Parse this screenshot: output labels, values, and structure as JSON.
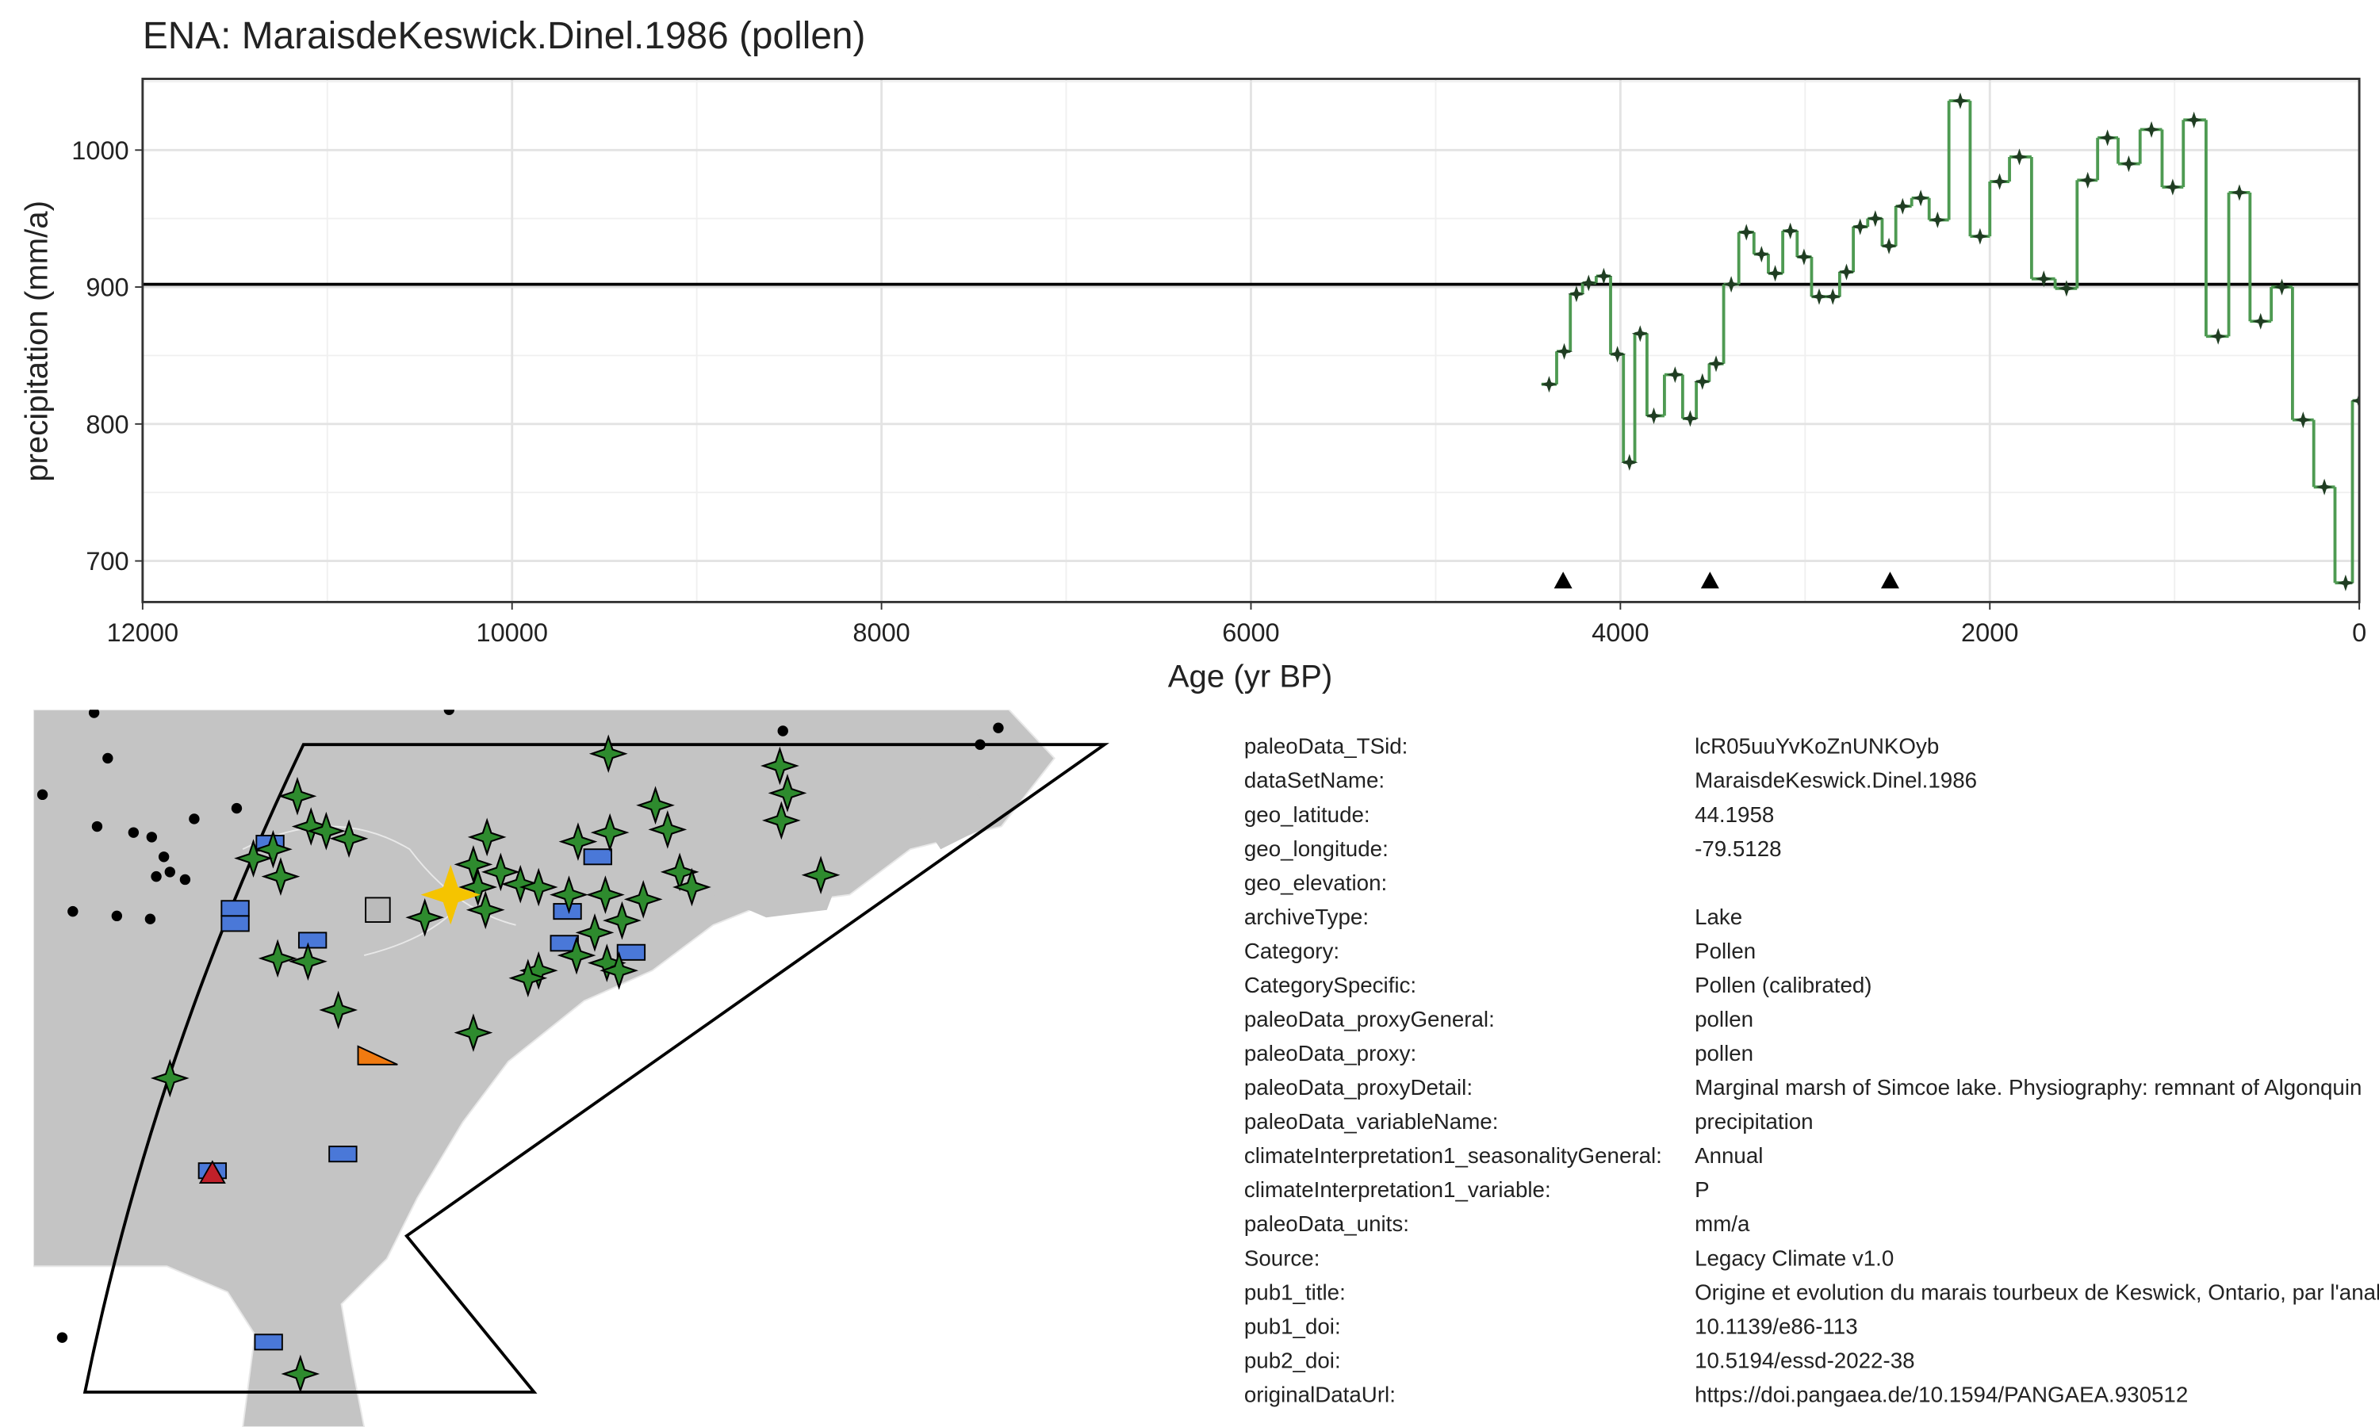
{
  "chart_data": {
    "type": "step",
    "title": "ENA: MaraisdeKeswick.Dinel.1986 (pollen)",
    "x_label": "Age (yr BP)",
    "y_label": "precipitation (mm/a)",
    "x": [
      4386,
      4304,
      4238,
      4172,
      4090,
      4016,
      3951,
      3893,
      3819,
      3704,
      3622,
      3556,
      3482,
      3400,
      3318,
      3236,
      3162,
      3080,
      3006,
      2924,
      2850,
      2776,
      2702,
      2620,
      2546,
      2472,
      2374,
      2283,
      2160,
      2053,
      1947,
      1840,
      1708,
      1585,
      1470,
      1363,
      1248,
      1125,
      1010,
      895,
      764,
      649,
      534,
      419,
      304,
      189,
      74,
      0
    ],
    "series": [
      {
        "name": "precipitation",
        "color": "#4e9a52",
        "marker_color": "#1f3d22",
        "values": [
          829,
          853,
          895,
          903,
          908,
          851,
          772,
          866,
          806,
          836,
          804,
          831,
          844,
          902,
          940,
          924,
          910,
          941,
          922,
          893,
          893,
          911,
          944,
          950,
          930,
          959,
          965,
          949,
          1036,
          937,
          977,
          995,
          906,
          899,
          978,
          1009,
          990,
          1015,
          973,
          1022,
          864,
          969,
          875,
          900,
          803,
          754,
          684,
          817
        ]
      }
    ],
    "reference_line": 902,
    "age_controls": [
      4310,
      3515,
      2540
    ],
    "xlim": [
      12000,
      0
    ],
    "ylim": [
      670,
      1052
    ],
    "xticks": [
      12000,
      10000,
      8000,
      6000,
      4000,
      2000,
      0
    ],
    "yticks": [
      700,
      800,
      900,
      1000
    ],
    "grid": true
  },
  "metadata": [
    {
      "key": "paleoData_TSid:",
      "value": "lcR05uuYvKoZnUNKOyb"
    },
    {
      "key": "dataSetName:",
      "value": "MaraisdeKeswick.Dinel.1986"
    },
    {
      "key": "geo_latitude:",
      "value": "44.1958"
    },
    {
      "key": "geo_longitude:",
      "value": "-79.5128"
    },
    {
      "key": "geo_elevation:",
      "value": ""
    },
    {
      "key": "archiveType:",
      "value": "Lake"
    },
    {
      "key": "Category:",
      "value": "Pollen"
    },
    {
      "key": "CategorySpecific:",
      "value": "Pollen (calibrated)"
    },
    {
      "key": "paleoData_proxyGeneral:",
      "value": "pollen"
    },
    {
      "key": "paleoData_proxy:",
      "value": "pollen"
    },
    {
      "key": "paleoData_proxyDetail:",
      "value": "Marginal marsh of Simcoe lake. Physiography: remnant of Algonquin"
    },
    {
      "key": "paleoData_variableName:",
      "value": "precipitation"
    },
    {
      "key": "climateInterpretation1_seasonalityGeneral:",
      "value": "Annual"
    },
    {
      "key": "climateInterpretation1_variable:",
      "value": "P"
    },
    {
      "key": "paleoData_units:",
      "value": "mm/a"
    },
    {
      "key": "Source:",
      "value": "Legacy Climate v1.0"
    },
    {
      "key": "pub1_title:",
      "value": "Origine et evolution du marais tourbeux de Keswick, Ontario, par l'analyse pollinique"
    },
    {
      "key": "pub1_doi:",
      "value": "10.1139/e86-113"
    },
    {
      "key": "pub2_doi:",
      "value": "10.5194/essd-2022-38"
    },
    {
      "key": "originalDataUrl:",
      "value": "https://doi.pangaea.de/10.1594/PANGAEA.930512"
    }
  ]
}
